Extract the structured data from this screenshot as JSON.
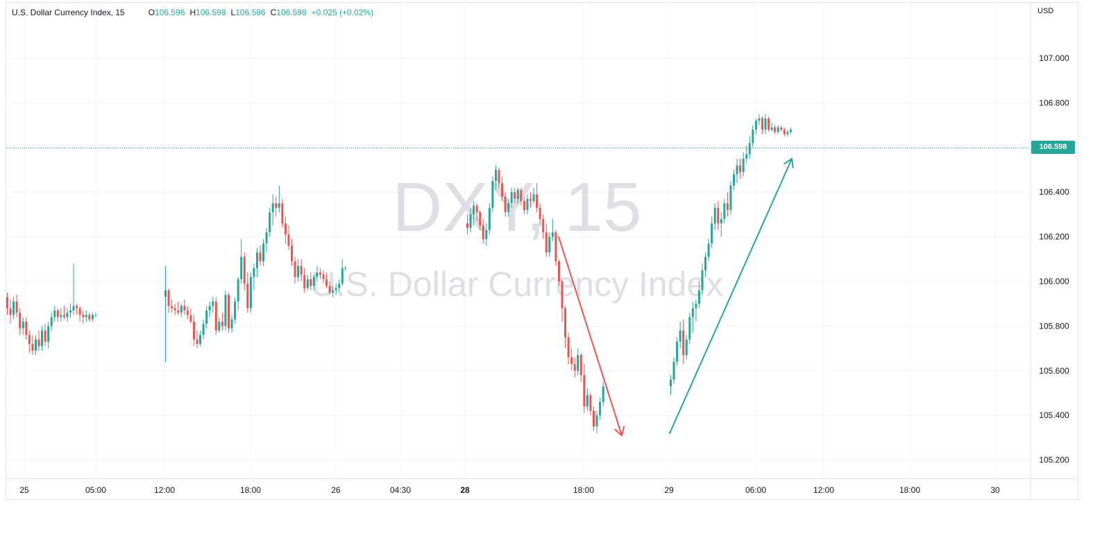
{
  "header": {
    "symbol": "U.S. Dollar Currency Index, 15",
    "open_label": "O",
    "open": "106.596",
    "high_label": "H",
    "high": "106.598",
    "low_label": "L",
    "low": "106.586",
    "close_label": "C",
    "close": "106.598",
    "change": "+0.025 (+0.02%)"
  },
  "currency": "USD",
  "last_price": "106.598",
  "watermark": {
    "title": "DXY, 15",
    "subtitle": "U.S. Dollar Currency Index"
  },
  "colors": {
    "up": "#26a69a",
    "down": "#ef5350",
    "grid": "#f0f3fa",
    "text": "#131722"
  },
  "chart_data": {
    "type": "candlestick",
    "symbol": "DXY",
    "interval": "15",
    "ylim": [
      105.12,
      107.22
    ],
    "y_ticks": [
      "107.000",
      "106.800",
      "106.600",
      "106.400",
      "106.200",
      "106.000",
      "105.800",
      "105.600",
      "105.400",
      "105.200"
    ],
    "x_ticks": [
      "25",
      "05:00",
      "12:00",
      "18:00",
      "26",
      "04:30",
      "28",
      "18:00",
      "29",
      "06:00",
      "12:00",
      "18:00",
      "30"
    ],
    "last_price": 106.598,
    "annotations": [
      {
        "type": "arrow",
        "color": "#ef5350",
        "direction": "down",
        "from_price": 106.2,
        "to_price": 105.31
      },
      {
        "type": "arrow",
        "color": "#26a69a",
        "direction": "up",
        "from_price": 105.32,
        "to_price": 106.55
      }
    ],
    "segments": [
      {
        "label": "25",
        "ohlc": [
          [
            105.93,
            105.95,
            105.85,
            105.88
          ],
          [
            105.88,
            105.92,
            105.81,
            105.85
          ],
          [
            105.85,
            105.93,
            105.83,
            105.91
          ],
          [
            105.91,
            105.94,
            105.84,
            105.86
          ],
          [
            105.86,
            105.88,
            105.76,
            105.79
          ],
          [
            105.79,
            105.84,
            105.76,
            105.82
          ],
          [
            105.82,
            105.84,
            105.74,
            105.76
          ],
          [
            105.76,
            105.78,
            105.68,
            105.72
          ],
          [
            105.72,
            105.76,
            105.67,
            105.69
          ],
          [
            105.69,
            105.76,
            105.67,
            105.74
          ],
          [
            105.74,
            105.78,
            105.69,
            105.71
          ],
          [
            105.71,
            105.8,
            105.69,
            105.78
          ],
          [
            105.78,
            105.81,
            105.71,
            105.73
          ],
          [
            105.73,
            105.82,
            105.7,
            105.8
          ],
          [
            105.8,
            105.86,
            105.78,
            105.84
          ],
          [
            105.84,
            105.89,
            105.82,
            105.87
          ],
          [
            105.87,
            105.88,
            105.82,
            105.84
          ],
          [
            105.84,
            105.88,
            105.82,
            105.85
          ],
          [
            105.85,
            105.89,
            105.83,
            105.84
          ],
          [
            105.84,
            105.88,
            105.82,
            105.86
          ],
          [
            105.86,
            105.9,
            105.84,
            105.87
          ],
          [
            105.87,
            106.08,
            105.85,
            105.89
          ],
          [
            105.89,
            105.9,
            105.85,
            105.88
          ],
          [
            105.88,
            105.89,
            105.82,
            105.85
          ],
          [
            105.85,
            105.87,
            105.81,
            105.84
          ],
          [
            105.84,
            105.87,
            105.82,
            105.85
          ],
          [
            105.85,
            105.86,
            105.82,
            105.83
          ],
          [
            105.83,
            105.86,
            105.82,
            105.85
          ],
          [
            105.85,
            105.86,
            105.84,
            105.85
          ]
        ]
      },
      {
        "label": "12:00",
        "ohlc": [
          [
            105.93,
            106.07,
            105.64,
            105.96
          ],
          [
            105.96,
            105.97,
            105.86,
            105.89
          ],
          [
            105.89,
            105.92,
            105.86,
            105.88
          ],
          [
            105.88,
            105.9,
            105.85,
            105.87
          ],
          [
            105.87,
            105.91,
            105.85,
            105.86
          ],
          [
            105.86,
            105.9,
            105.84,
            105.89
          ],
          [
            105.89,
            105.92,
            105.85,
            105.87
          ],
          [
            105.87,
            105.89,
            105.83,
            105.85
          ],
          [
            105.85,
            105.88,
            105.81,
            105.82
          ],
          [
            105.82,
            105.85,
            105.71,
            105.74
          ],
          [
            105.74,
            105.78,
            105.7,
            105.72
          ],
          [
            105.72,
            105.78,
            105.71,
            105.76
          ],
          [
            105.76,
            105.83,
            105.74,
            105.81
          ],
          [
            105.81,
            105.89,
            105.79,
            105.87
          ],
          [
            105.87,
            105.91,
            105.84,
            105.89
          ],
          [
            105.89,
            105.93,
            105.86,
            105.91
          ],
          [
            105.91,
            105.93,
            105.76,
            105.78
          ],
          [
            105.78,
            105.84,
            105.77,
            105.82
          ],
          [
            105.82,
            105.86,
            105.78,
            105.8
          ],
          [
            105.8,
            105.96,
            105.78,
            105.94
          ],
          [
            105.94,
            105.95,
            105.77,
            105.79
          ],
          [
            105.79,
            105.85,
            105.77,
            105.83
          ],
          [
            105.83,
            105.93,
            105.81,
            105.91
          ],
          [
            105.91,
            106.02,
            105.87,
            106.01
          ],
          [
            106.01,
            106.19,
            105.99,
            106.11
          ],
          [
            106.11,
            106.13,
            105.96,
            105.99
          ],
          [
            105.99,
            106.04,
            105.86,
            105.88
          ],
          [
            105.88,
            106.04,
            105.86,
            106.02
          ],
          [
            106.02,
            106.08,
            105.96,
            106.06
          ],
          [
            106.06,
            106.15,
            106.02,
            106.13
          ],
          [
            106.13,
            106.16,
            106.07,
            106.09
          ],
          [
            106.09,
            106.19,
            106.07,
            106.17
          ],
          [
            106.17,
            106.24,
            106.13,
            106.22
          ],
          [
            106.22,
            106.33,
            106.2,
            106.31
          ],
          [
            106.31,
            106.39,
            106.25,
            106.35
          ],
          [
            106.35,
            106.38,
            106.29,
            106.33
          ],
          [
            106.33,
            106.43,
            106.31,
            106.35
          ],
          [
            106.35,
            106.37,
            106.24,
            106.26
          ],
          [
            106.26,
            106.29,
            106.17,
            106.21
          ],
          [
            106.21,
            106.25,
            106.14,
            106.16
          ],
          [
            106.16,
            106.19,
            106.07,
            106.09
          ],
          [
            106.09,
            106.11,
            105.99,
            106.02
          ],
          [
            106.02,
            106.1,
            106.0,
            106.07
          ],
          [
            106.07,
            106.1,
            106.0,
            106.03
          ],
          [
            106.03,
            106.06,
            105.95,
            105.97
          ],
          [
            105.97,
            106.03,
            105.96,
            106.01
          ],
          [
            106.01,
            106.04,
            105.96,
            105.98
          ],
          [
            105.98,
            106.03,
            105.96,
            106.02
          ],
          [
            106.02,
            106.07,
            106.0,
            106.04
          ],
          [
            106.04,
            106.06,
            106.01,
            106.03
          ],
          [
            106.03,
            106.05,
            105.99,
            106.01
          ],
          [
            106.01,
            106.04,
            105.97,
            105.98
          ],
          [
            105.98,
            106.0,
            105.94,
            105.95
          ],
          [
            105.95,
            105.98,
            105.93,
            105.96
          ],
          [
            105.96,
            105.99,
            105.94,
            105.97
          ],
          [
            105.97,
            106.01,
            105.95,
            105.99
          ],
          [
            105.99,
            106.1,
            105.98,
            106.06
          ],
          [
            106.06,
            106.07,
            106.05,
            106.06
          ]
        ]
      },
      {
        "label": "28",
        "ohlc": [
          [
            106.26,
            106.3,
            106.21,
            106.24
          ],
          [
            106.24,
            106.33,
            106.22,
            106.3
          ],
          [
            106.3,
            106.36,
            106.25,
            106.34
          ],
          [
            106.34,
            106.35,
            106.27,
            106.31
          ],
          [
            106.31,
            106.32,
            106.23,
            106.25
          ],
          [
            106.25,
            106.28,
            106.17,
            106.19
          ],
          [
            106.19,
            106.26,
            106.16,
            106.23
          ],
          [
            106.23,
            106.35,
            106.21,
            106.33
          ],
          [
            106.33,
            106.47,
            106.31,
            106.45
          ],
          [
            106.45,
            106.52,
            106.41,
            106.5
          ],
          [
            106.5,
            106.51,
            106.42,
            106.44
          ],
          [
            106.44,
            106.47,
            106.36,
            106.38
          ],
          [
            106.38,
            106.4,
            106.29,
            106.31
          ],
          [
            106.31,
            106.37,
            106.29,
            106.35
          ],
          [
            106.35,
            106.42,
            106.33,
            106.4
          ],
          [
            106.4,
            106.42,
            106.35,
            106.37
          ],
          [
            106.37,
            106.42,
            106.35,
            106.41
          ],
          [
            106.41,
            106.42,
            106.34,
            106.36
          ],
          [
            106.36,
            106.38,
            106.3,
            106.32
          ],
          [
            106.32,
            106.39,
            106.3,
            106.37
          ],
          [
            106.37,
            106.4,
            106.33,
            106.36
          ],
          [
            106.36,
            106.42,
            106.35,
            106.39
          ],
          [
            106.39,
            106.44,
            106.31,
            106.33
          ],
          [
            106.33,
            106.35,
            106.25,
            106.28
          ],
          [
            106.28,
            106.3,
            106.19,
            106.22
          ],
          [
            106.22,
            106.26,
            106.11,
            106.13
          ],
          [
            106.13,
            106.22,
            106.11,
            106.2
          ],
          [
            106.2,
            106.28,
            106.18,
            106.22
          ],
          [
            106.22,
            106.23,
            106.07,
            106.09
          ],
          [
            106.09,
            106.1,
            105.98,
            106.0
          ],
          [
            106.0,
            106.01,
            105.82,
            105.88
          ],
          [
            105.88,
            105.89,
            105.7,
            105.75
          ],
          [
            105.75,
            105.77,
            105.63,
            105.66
          ],
          [
            105.66,
            105.7,
            105.6,
            105.63
          ],
          [
            105.63,
            105.66,
            105.57,
            105.6
          ],
          [
            105.6,
            105.7,
            105.58,
            105.67
          ],
          [
            105.67,
            105.68,
            105.55,
            105.58
          ],
          [
            105.58,
            105.63,
            105.41,
            105.44
          ],
          [
            105.44,
            105.52,
            105.42,
            105.49
          ],
          [
            105.49,
            105.5,
            105.4,
            105.42
          ],
          [
            105.42,
            105.44,
            105.33,
            105.35
          ],
          [
            105.35,
            105.42,
            105.32,
            105.4
          ],
          [
            105.4,
            105.48,
            105.38,
            105.46
          ],
          [
            105.46,
            105.55,
            105.44,
            105.53
          ]
        ]
      },
      {
        "label": "29",
        "ohlc": [
          [
            105.53,
            105.58,
            105.49,
            105.56
          ],
          [
            105.56,
            105.66,
            105.54,
            105.64
          ],
          [
            105.64,
            105.75,
            105.62,
            105.73
          ],
          [
            105.73,
            105.82,
            105.7,
            105.78
          ],
          [
            105.78,
            105.83,
            105.63,
            105.67
          ],
          [
            105.67,
            105.76,
            105.65,
            105.74
          ],
          [
            105.74,
            105.86,
            105.72,
            105.84
          ],
          [
            105.84,
            105.91,
            105.77,
            105.88
          ],
          [
            105.88,
            105.92,
            105.82,
            105.9
          ],
          [
            105.9,
            106.0,
            105.88,
            105.96
          ],
          [
            105.96,
            106.08,
            105.94,
            106.05
          ],
          [
            106.05,
            106.13,
            106.02,
            106.11
          ],
          [
            106.11,
            106.19,
            106.09,
            106.17
          ],
          [
            106.17,
            106.29,
            106.15,
            106.26
          ],
          [
            106.26,
            106.35,
            106.23,
            106.33
          ],
          [
            106.33,
            106.36,
            106.23,
            106.26
          ],
          [
            106.26,
            106.31,
            106.2,
            106.28
          ],
          [
            106.28,
            106.37,
            106.26,
            106.35
          ],
          [
            106.35,
            106.4,
            106.29,
            106.32
          ],
          [
            106.32,
            106.45,
            106.3,
            106.43
          ],
          [
            106.43,
            106.5,
            106.41,
            106.48
          ],
          [
            106.48,
            106.55,
            106.44,
            106.52
          ],
          [
            106.52,
            106.55,
            106.46,
            106.49
          ],
          [
            106.49,
            106.58,
            106.47,
            106.55
          ],
          [
            106.55,
            106.61,
            106.53,
            106.57
          ],
          [
            106.57,
            106.65,
            106.55,
            106.62
          ],
          [
            106.62,
            106.7,
            106.6,
            106.68
          ],
          [
            106.68,
            106.73,
            106.66,
            106.72
          ],
          [
            106.72,
            106.75,
            106.7,
            106.73
          ],
          [
            106.73,
            106.74,
            106.66,
            106.68
          ],
          [
            106.68,
            106.75,
            106.66,
            106.73
          ],
          [
            106.73,
            106.74,
            106.67,
            106.68
          ],
          [
            106.68,
            106.71,
            106.67,
            106.69
          ],
          [
            106.69,
            106.7,
            106.66,
            106.67
          ],
          [
            106.67,
            106.7,
            106.66,
            106.69
          ],
          [
            106.69,
            106.7,
            106.67,
            106.68
          ],
          [
            106.68,
            106.69,
            106.65,
            106.66
          ],
          [
            106.66,
            106.68,
            106.65,
            106.67
          ],
          [
            106.67,
            106.69,
            106.66,
            106.68
          ]
        ]
      }
    ]
  }
}
